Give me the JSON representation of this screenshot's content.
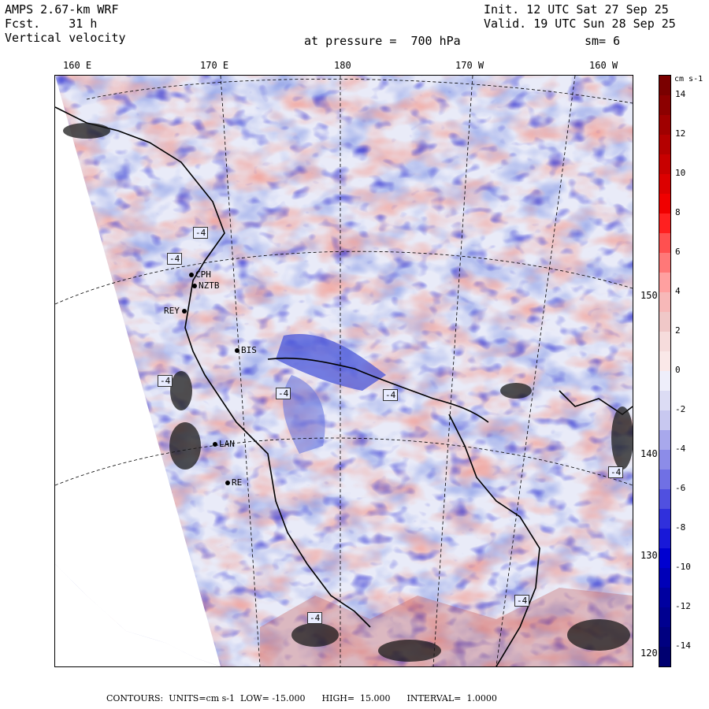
{
  "header": {
    "model": "AMPS 2.67-km WRF",
    "fcst": "Fcst.    31 h",
    "field": "Vertical velocity",
    "init": "Init. 12 UTC Sat 27 Sep 25",
    "valid": "Valid. 19 UTC Sun 28 Sep 25",
    "pressure": "at pressure =  700 hPa",
    "smooth": "sm= 6"
  },
  "lon_labels": [
    "160 E",
    "170 E",
    "180",
    "170 W",
    "160 W"
  ],
  "lat_labels": [
    "150 W",
    "140 W",
    "130 W",
    "120 W"
  ],
  "stations": [
    {
      "id": "CPH"
    },
    {
      "id": "NZTB"
    },
    {
      "id": "REY"
    },
    {
      "id": "BIS"
    },
    {
      "id": "LAN"
    },
    {
      "id": "RE"
    }
  ],
  "contour_boxes": [
    "-4",
    "-4",
    "-4",
    "-4",
    "-4",
    "-4",
    "-4",
    "-4"
  ],
  "colorbar": {
    "unit": "cm s-1",
    "labels": [
      "14",
      "12",
      "10",
      "8",
      "6",
      "4",
      "2",
      "0",
      "-2",
      "-4",
      "-6",
      "-8",
      "-10",
      "-12",
      "-14"
    ],
    "colors": [
      "#7a0000",
      "#8c0000",
      "#a00000",
      "#b40000",
      "#c80000",
      "#dc0000",
      "#f00000",
      "#ff2020",
      "#ff5050",
      "#ff7878",
      "#ffa0a0",
      "#f7b8b8",
      "#f0c8c8",
      "#f6dcdc",
      "#fae8e8",
      "#eeeefa",
      "#dcdcf4",
      "#c8c8f0",
      "#a8a8ec",
      "#8c8ce8",
      "#7070e4",
      "#5050e0",
      "#3030dc",
      "#1818d8",
      "#0000d0",
      "#0000b8",
      "#0000a0",
      "#000090",
      "#000080",
      "#000070"
    ]
  },
  "footer": "CONTOURS:  UNITS=cm s-1  LOW= -15.000      HIGH=  15.000      INTERVAL=  1.0000",
  "colors": {
    "upward": "#f4a9a0",
    "downward": "#8ea0e8",
    "neutral": "#e6e8f8"
  }
}
